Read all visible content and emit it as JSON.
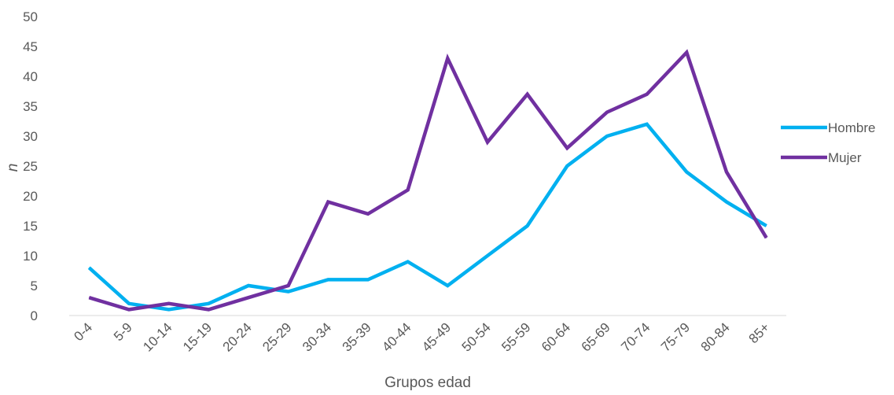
{
  "chart_data": {
    "type": "line",
    "title": "",
    "xlabel": "Grupos edad",
    "ylabel": "n",
    "ylim": [
      0,
      50
    ],
    "yticks": [
      0,
      5,
      10,
      15,
      20,
      25,
      30,
      35,
      40,
      45,
      50
    ],
    "grid": false,
    "legend_position": "right",
    "categories": [
      "0-4",
      "5-9",
      "10-14",
      "15-19",
      "20-24",
      "25-29",
      "30-34",
      "35-39",
      "40-44",
      "45-49",
      "50-54",
      "55-59",
      "60-64",
      "65-69",
      "70-74",
      "75-79",
      "80-84",
      "85+"
    ],
    "series": [
      {
        "name": "Hombre",
        "color": "#00B0F0",
        "values": [
          8,
          2,
          1,
          2,
          5,
          4,
          6,
          6,
          9,
          5,
          10,
          15,
          25,
          30,
          32,
          24,
          19,
          15
        ]
      },
      {
        "name": "Mujer",
        "color": "#7030A0",
        "values": [
          3,
          1,
          2,
          1,
          3,
          5,
          19,
          17,
          21,
          43,
          29,
          37,
          28,
          34,
          37,
          44,
          24,
          13
        ]
      }
    ]
  }
}
